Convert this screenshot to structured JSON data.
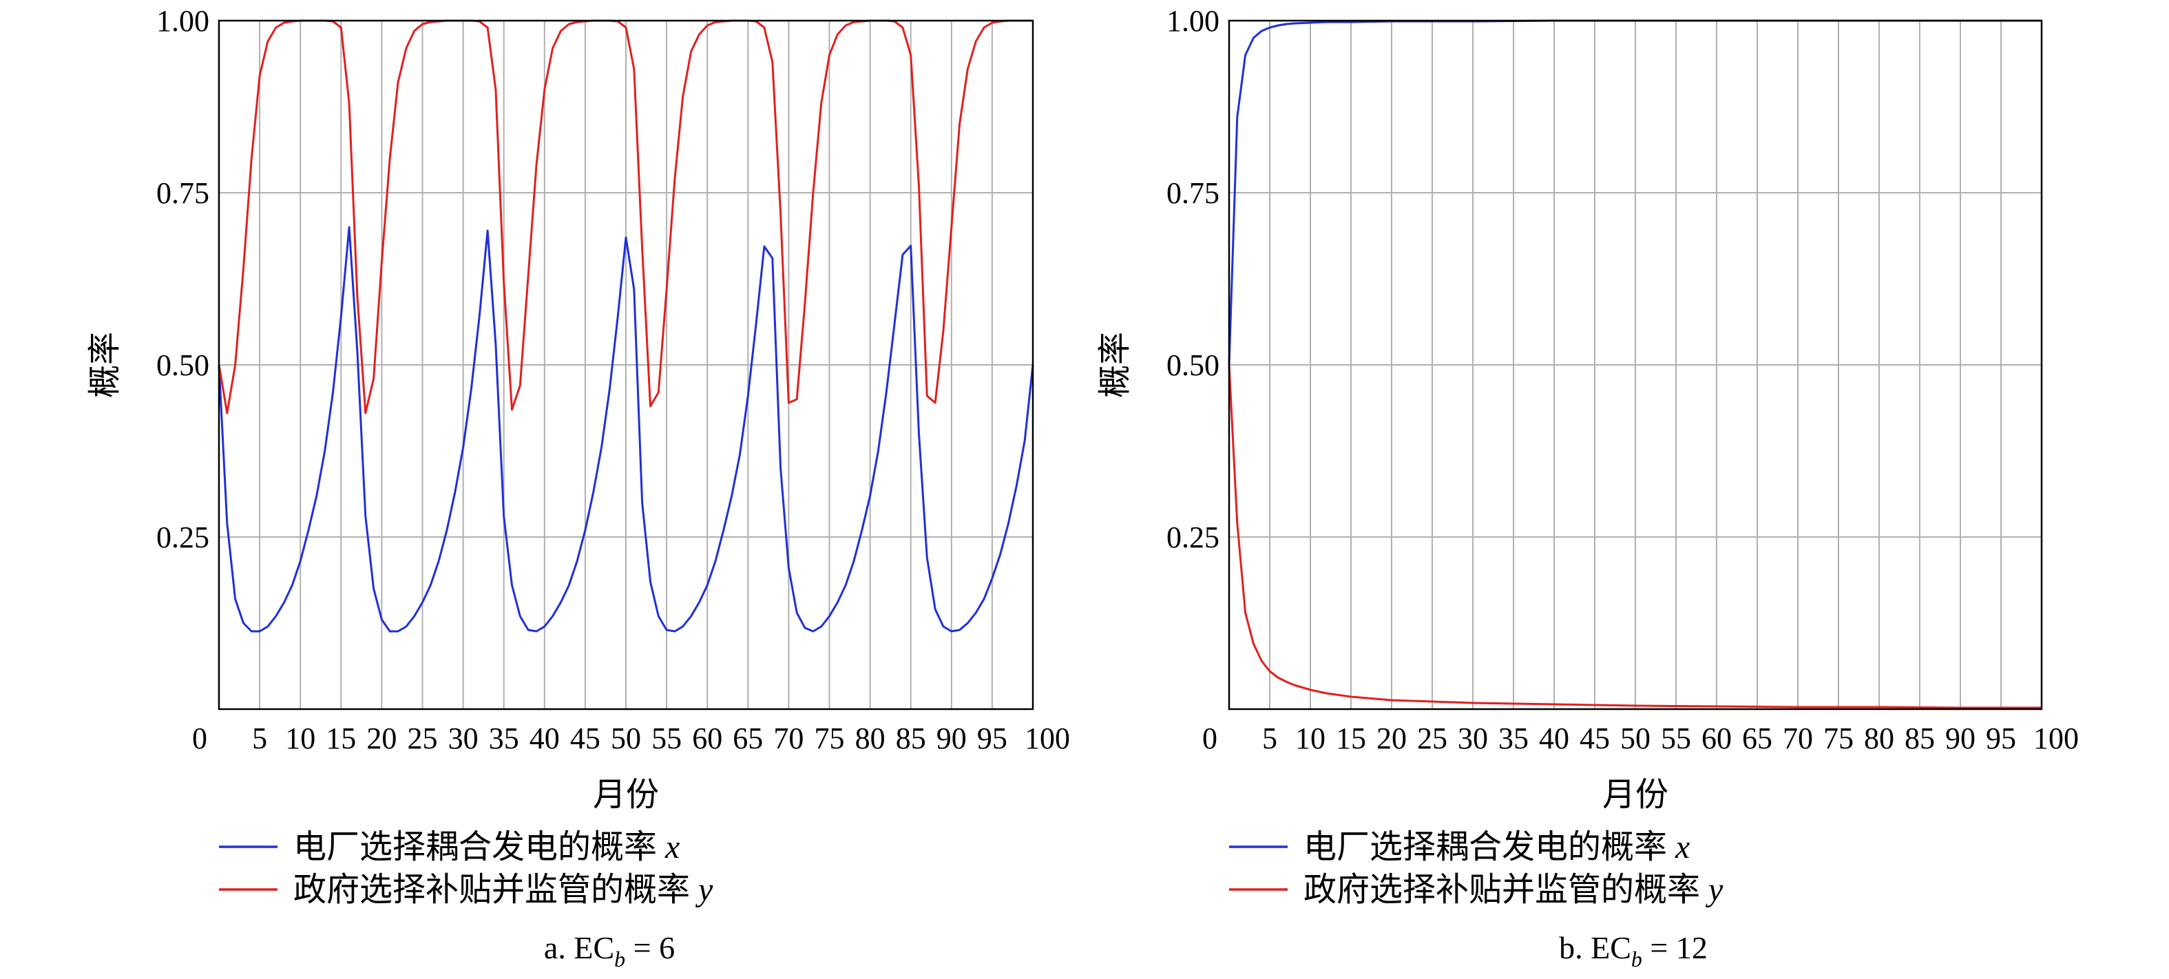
{
  "chart_data": [
    {
      "type": "line",
      "caption": {
        "prefix": "a. EC",
        "sub": "b",
        "suffix": " = 6"
      },
      "xlabel": "月份",
      "ylabel": "概率",
      "xlim": [
        0,
        100
      ],
      "ylim": [
        0,
        1
      ],
      "x_ticks": [
        "0",
        "5",
        "10",
        "15",
        "20",
        "25",
        "30",
        "35",
        "40",
        "45",
        "50",
        "55",
        "60",
        "65",
        "70",
        "75",
        "80",
        "85",
        "90",
        "95",
        "100"
      ],
      "y_ticks": [
        "0.25",
        "0.50",
        "0.75",
        "1.00"
      ],
      "grid": true,
      "legend_position": "bottom-left",
      "series": [
        {
          "name": "电厂选择耦合发电的概率",
          "var": "x",
          "color": "#2030d8",
          "x": [
            0,
            1,
            2,
            3,
            4,
            5,
            6,
            7,
            8,
            9,
            10,
            11,
            12,
            13,
            14,
            15,
            16,
            17,
            18,
            19,
            20,
            21,
            22,
            23,
            24,
            25,
            26,
            27,
            28,
            29,
            30,
            31,
            32,
            33,
            34,
            35,
            36,
            37,
            38,
            39,
            40,
            41,
            42,
            43,
            44,
            45,
            46,
            47,
            48,
            49,
            50,
            51,
            52,
            53,
            54,
            55,
            56,
            57,
            58,
            59,
            60,
            61,
            62,
            63,
            64,
            65,
            66,
            67,
            68,
            69,
            70,
            71,
            72,
            73,
            74,
            75,
            76,
            77,
            78,
            79,
            80,
            81,
            82,
            83,
            84,
            85,
            86,
            87,
            88,
            89,
            90,
            91,
            92,
            93,
            94,
            95,
            96,
            97,
            98,
            99,
            100
          ],
          "values": [
            0.5,
            0.27,
            0.16,
            0.125,
            0.113,
            0.113,
            0.12,
            0.135,
            0.155,
            0.18,
            0.215,
            0.26,
            0.31,
            0.375,
            0.46,
            0.57,
            0.7,
            0.52,
            0.28,
            0.175,
            0.13,
            0.113,
            0.113,
            0.12,
            0.135,
            0.155,
            0.18,
            0.215,
            0.26,
            0.315,
            0.38,
            0.465,
            0.57,
            0.695,
            0.53,
            0.28,
            0.18,
            0.135,
            0.115,
            0.113,
            0.12,
            0.135,
            0.155,
            0.18,
            0.215,
            0.26,
            0.315,
            0.38,
            0.465,
            0.57,
            0.685,
            0.61,
            0.3,
            0.185,
            0.135,
            0.115,
            0.113,
            0.12,
            0.135,
            0.155,
            0.18,
            0.215,
            0.26,
            0.31,
            0.37,
            0.455,
            0.56,
            0.672,
            0.655,
            0.35,
            0.205,
            0.14,
            0.118,
            0.113,
            0.12,
            0.135,
            0.155,
            0.18,
            0.215,
            0.26,
            0.31,
            0.375,
            0.46,
            0.56,
            0.66,
            0.673,
            0.4,
            0.22,
            0.145,
            0.12,
            0.113,
            0.115,
            0.125,
            0.14,
            0.16,
            0.19,
            0.225,
            0.27,
            0.325,
            0.39,
            0.5
          ]
        },
        {
          "name": "政府选择补贴并监管的概率",
          "var": "y",
          "color": "#e02020",
          "x": [
            0,
            1,
            2,
            3,
            4,
            5,
            6,
            7,
            8,
            9,
            10,
            11,
            12,
            13,
            14,
            15,
            16,
            17,
            18,
            19,
            20,
            21,
            22,
            23,
            24,
            25,
            26,
            27,
            28,
            29,
            30,
            31,
            32,
            33,
            34,
            35,
            36,
            37,
            38,
            39,
            40,
            41,
            42,
            43,
            44,
            45,
            46,
            47,
            48,
            49,
            50,
            51,
            52,
            53,
            54,
            55,
            56,
            57,
            58,
            59,
            60,
            61,
            62,
            63,
            64,
            65,
            66,
            67,
            68,
            69,
            70,
            71,
            72,
            73,
            74,
            75,
            76,
            77,
            78,
            79,
            80,
            81,
            82,
            83,
            84,
            85,
            86,
            87,
            88,
            89,
            90,
            91,
            92,
            93,
            94,
            95,
            96,
            97,
            98,
            99,
            100
          ],
          "values": [
            0.5,
            0.43,
            0.5,
            0.64,
            0.8,
            0.92,
            0.97,
            0.99,
            0.997,
            0.999,
            1.0,
            1.0,
            1.0,
            1.0,
            0.999,
            0.99,
            0.88,
            0.6,
            0.43,
            0.48,
            0.65,
            0.8,
            0.91,
            0.96,
            0.985,
            0.995,
            0.998,
            0.999,
            1.0,
            1.0,
            1.0,
            1.0,
            0.999,
            0.99,
            0.9,
            0.62,
            0.435,
            0.47,
            0.63,
            0.79,
            0.9,
            0.96,
            0.985,
            0.995,
            0.998,
            0.999,
            1.0,
            1.0,
            1.0,
            0.999,
            0.99,
            0.93,
            0.67,
            0.44,
            0.46,
            0.61,
            0.77,
            0.89,
            0.955,
            0.98,
            0.993,
            0.998,
            0.999,
            1.0,
            1.0,
            1.0,
            0.999,
            0.99,
            0.94,
            0.72,
            0.445,
            0.45,
            0.59,
            0.75,
            0.88,
            0.95,
            0.98,
            0.993,
            0.998,
            0.999,
            1.0,
            1.0,
            1.0,
            0.999,
            0.99,
            0.95,
            0.76,
            0.455,
            0.445,
            0.55,
            0.7,
            0.85,
            0.93,
            0.97,
            0.99,
            0.997,
            0.999,
            1.0,
            1.0,
            1.0,
            1.0
          ]
        }
      ]
    },
    {
      "type": "line",
      "caption": {
        "prefix": "b. EC",
        "sub": "b",
        "suffix": " = 12"
      },
      "xlabel": "月份",
      "ylabel": "概率",
      "xlim": [
        0,
        100
      ],
      "ylim": [
        0,
        1
      ],
      "x_ticks": [
        "0",
        "5",
        "10",
        "15",
        "20",
        "25",
        "30",
        "35",
        "40",
        "45",
        "50",
        "55",
        "60",
        "65",
        "70",
        "75",
        "80",
        "85",
        "90",
        "95",
        "100"
      ],
      "y_ticks": [
        "0.25",
        "0.50",
        "0.75",
        "1.00"
      ],
      "grid": true,
      "legend_position": "bottom-left",
      "series": [
        {
          "name": "电厂选择耦合发电的概率",
          "var": "x",
          "color": "#2030d8",
          "x": [
            0,
            1,
            2,
            3,
            4,
            5,
            6,
            7,
            8,
            10,
            12,
            15,
            20,
            30,
            40,
            50,
            60,
            70,
            80,
            90,
            100
          ],
          "values": [
            0.5,
            0.86,
            0.95,
            0.975,
            0.985,
            0.99,
            0.993,
            0.995,
            0.996,
            0.997,
            0.998,
            0.998,
            0.999,
            0.999,
            1.0,
            1.0,
            1.0,
            1.0,
            1.0,
            1.0,
            1.0
          ]
        },
        {
          "name": "政府选择补贴并监管的概率",
          "var": "y",
          "color": "#e02020",
          "x": [
            0,
            1,
            2,
            3,
            4,
            5,
            6,
            7,
            8,
            10,
            12,
            15,
            20,
            25,
            30,
            40,
            50,
            60,
            70,
            80,
            90,
            100
          ],
          "values": [
            0.5,
            0.27,
            0.14,
            0.095,
            0.07,
            0.055,
            0.046,
            0.04,
            0.035,
            0.028,
            0.023,
            0.018,
            0.013,
            0.011,
            0.009,
            0.007,
            0.005,
            0.004,
            0.003,
            0.003,
            0.002,
            0.002
          ]
        }
      ]
    }
  ]
}
